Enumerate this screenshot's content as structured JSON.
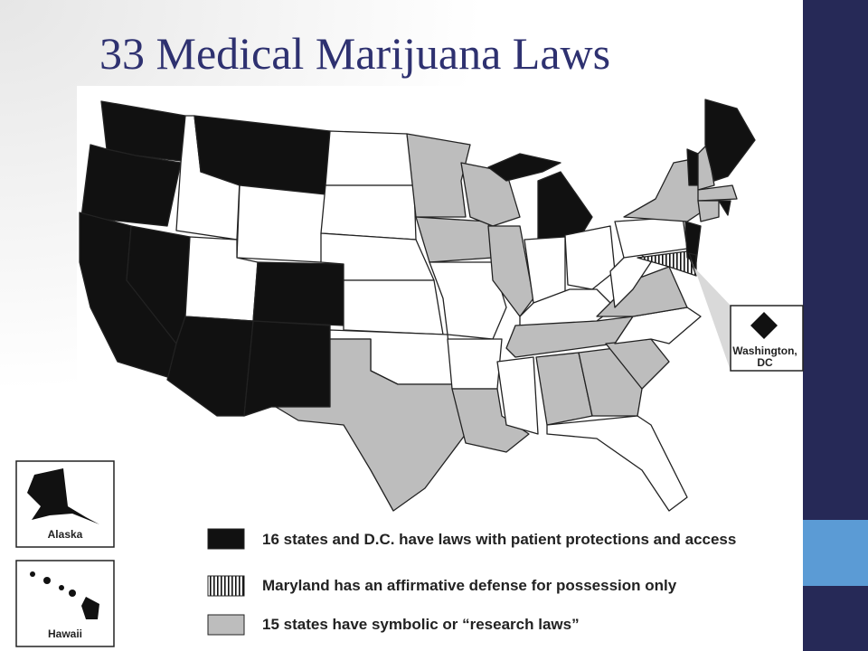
{
  "title": "33 Medical Marijuana Laws",
  "insets": {
    "alaska": "Alaska",
    "hawaii": "Hawaii",
    "dc": [
      "Washington,",
      "DC"
    ]
  },
  "legend": [
    {
      "label": "16 states and D.C. have laws with patient protections and access"
    },
    {
      "label": "Maryland has an affirmative defense for possession only"
    },
    {
      "label": "15 states have symbolic or “research laws”"
    }
  ]
}
